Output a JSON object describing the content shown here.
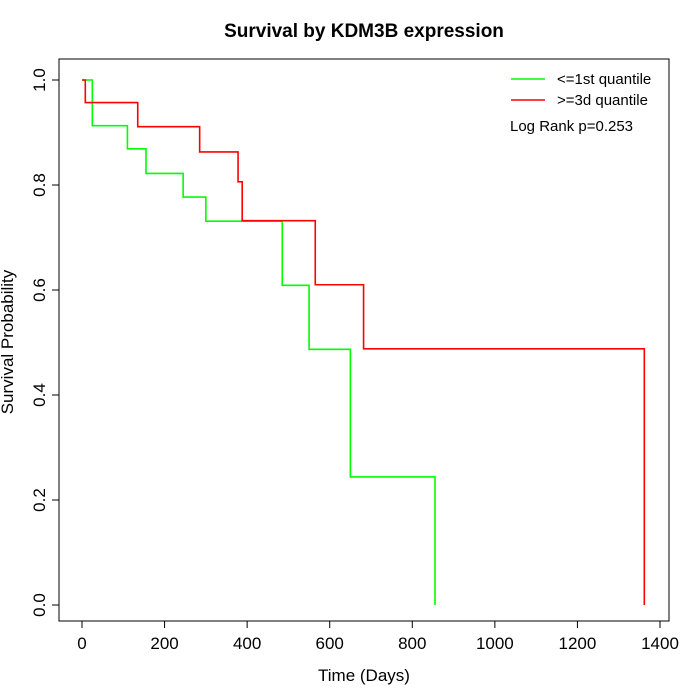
{
  "chart_data": {
    "type": "line",
    "title": "Survival by KDM3B expression",
    "xlabel": "Time (Days)",
    "ylabel": "Survival Probability",
    "xlim": [
      0,
      1400
    ],
    "ylim": [
      0,
      1.0
    ],
    "x_ticks": [
      0,
      200,
      400,
      600,
      800,
      1000,
      1200,
      1400
    ],
    "y_ticks": [
      0.0,
      0.2,
      0.4,
      0.6,
      0.8,
      1.0
    ],
    "x_tick_labels": [
      "0",
      "200",
      "400",
      "600",
      "800",
      "1000",
      "1200",
      "1400"
    ],
    "y_tick_labels": [
      "0.0",
      "0.2",
      "0.4",
      "0.6",
      "0.8",
      "1.0"
    ],
    "grid": false,
    "legend_position": "top-right",
    "annotation": "Log Rank p=0.253",
    "series": [
      {
        "name": "<=1st quantile",
        "color": "#00ff00",
        "step": true,
        "x": [
          0,
          25,
          110,
          155,
          245,
          300,
          485,
          550,
          650,
          855,
          855
        ],
        "y": [
          1.0,
          0.913,
          0.869,
          0.822,
          0.777,
          0.731,
          0.609,
          0.487,
          0.244,
          0.244,
          0.0
        ]
      },
      {
        "name": ">=3d quantile",
        "color": "#ff0000",
        "step": true,
        "x": [
          0,
          8,
          135,
          285,
          378,
          388,
          565,
          682,
          1362,
          1362
        ],
        "y": [
          1.0,
          0.957,
          0.911,
          0.863,
          0.806,
          0.732,
          0.61,
          0.488,
          0.488,
          0.0
        ]
      }
    ]
  }
}
